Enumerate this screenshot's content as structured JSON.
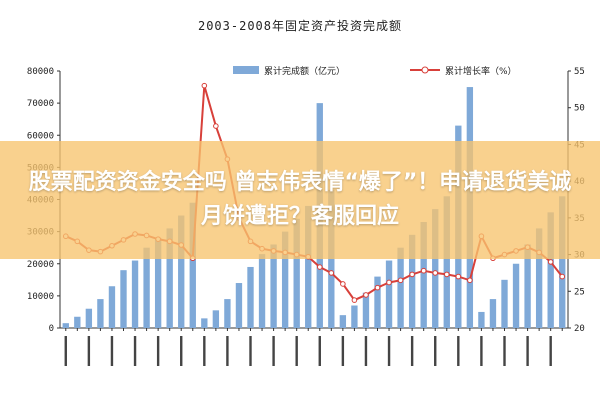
{
  "chart_data": {
    "type": "bar",
    "title": "2003-2008年固定资产投资完成额",
    "legend_position": "top",
    "grid": false,
    "colors": {
      "bars": "#7fa9d8",
      "line": "#d8403a",
      "markers": "#ffffff"
    },
    "y_left": {
      "min": 0,
      "max": 80000,
      "ticks": [
        "0",
        "10000",
        "20000",
        "30000",
        "40000",
        "50000",
        "60000",
        "70000",
        "80000"
      ]
    },
    "y_right": {
      "min": 20,
      "max": 55,
      "ticks": [
        "20",
        "25",
        "30",
        "35",
        "40",
        "45",
        "50",
        "55"
      ]
    },
    "series": [
      {
        "name": "累计完成额（亿元）",
        "type": "bar",
        "values": [
          1500,
          3500,
          6000,
          9000,
          13000,
          18000,
          21000,
          25000,
          28000,
          31000,
          35000,
          39000,
          3000,
          5500,
          9000,
          14000,
          19000,
          23000,
          26000,
          30000,
          34000,
          38000,
          70000,
          43000,
          4000,
          7000,
          11000,
          16000,
          21000,
          25000,
          29000,
          33000,
          37000,
          41000,
          63000,
          75000,
          5000,
          9000,
          15000,
          20000,
          26000,
          31000,
          36000,
          41000
        ]
      },
      {
        "name": "累计增长率（%）",
        "type": "line",
        "values": [
          32.5,
          31.8,
          30.6,
          30.4,
          31.2,
          32.0,
          32.8,
          32.6,
          32.1,
          31.8,
          31.3,
          29.5,
          53.0,
          47.5,
          43.0,
          35.0,
          31.8,
          30.8,
          30.5,
          30.3,
          30.0,
          29.7,
          28.3,
          27.5,
          26.0,
          23.8,
          24.5,
          25.5,
          26.2,
          26.5,
          27.3,
          27.8,
          27.5,
          27.3,
          27.0,
          26.5,
          32.5,
          29.5,
          30.0,
          30.5,
          31.0,
          30.3,
          29.0,
          27.0
        ]
      }
    ]
  },
  "overlay": {
    "headline": "股票配资资金安全吗 曾志伟表情“爆了”！申请退货美诚月饼遭拒？客服回应"
  }
}
